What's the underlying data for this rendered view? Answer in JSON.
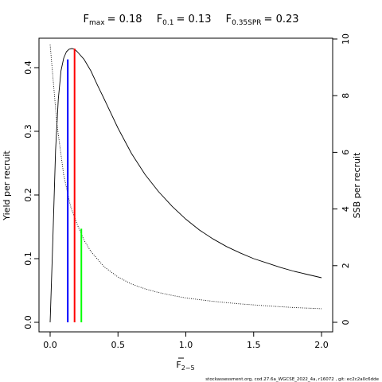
{
  "chart_data": {
    "type": "line",
    "title_terms": [
      {
        "main": "F",
        "sub": "max",
        "value": "= 0.18"
      },
      {
        "main": "F",
        "sub": "0.1",
        "value": "= 0.13"
      },
      {
        "main": "F",
        "sub": "0.35SPR",
        "value": "= 0.23"
      }
    ],
    "xlabel_main": "F",
    "xlabel_sub": "2−5",
    "ylabel_left": "Yield per recruit",
    "ylabel_right": "SSB per recruit",
    "xlim": [
      0,
      2
    ],
    "ylim_left": [
      0,
      0.43
    ],
    "ylim_right": [
      0,
      10
    ],
    "x_ticks": [
      "0.0",
      "0.5",
      "1.0",
      "1.5",
      "2.0"
    ],
    "y_left_ticks": [
      "0.0",
      "0.1",
      "0.2",
      "0.3",
      "0.4"
    ],
    "y_right_ticks": [
      "0",
      "2",
      "4",
      "6",
      "8",
      "10"
    ],
    "series": [
      {
        "axis": "left",
        "style": "solid",
        "color": "#000000",
        "x": [
          0,
          0.02,
          0.04,
          0.06,
          0.08,
          0.1,
          0.12,
          0.14,
          0.16,
          0.18,
          0.2,
          0.25,
          0.3,
          0.35,
          0.4,
          0.5,
          0.6,
          0.7,
          0.8,
          0.9,
          1.0,
          1.1,
          1.2,
          1.3,
          1.4,
          1.5,
          1.6,
          1.7,
          1.8,
          1.9,
          2.0
        ],
        "y": [
          0,
          0.13,
          0.27,
          0.35,
          0.395,
          0.415,
          0.425,
          0.429,
          0.43,
          0.429,
          0.425,
          0.413,
          0.395,
          0.372,
          0.35,
          0.305,
          0.265,
          0.232,
          0.205,
          0.182,
          0.162,
          0.145,
          0.131,
          0.119,
          0.109,
          0.1,
          0.093,
          0.086,
          0.08,
          0.075,
          0.07
        ]
      },
      {
        "axis": "right",
        "style": "dotted",
        "color": "#000000",
        "x": [
          0,
          0.05,
          0.1,
          0.15,
          0.2,
          0.25,
          0.3,
          0.4,
          0.5,
          0.6,
          0.7,
          0.8,
          0.9,
          1.0,
          1.2,
          1.4,
          1.6,
          1.8,
          2.0
        ],
        "y": [
          9.8,
          7.0,
          5.2,
          4.1,
          3.45,
          2.9,
          2.5,
          1.95,
          1.6,
          1.35,
          1.18,
          1.05,
          0.95,
          0.86,
          0.74,
          0.65,
          0.58,
          0.52,
          0.48
        ]
      }
    ],
    "reference_lines": [
      {
        "x": 0.13,
        "y": 0.413,
        "color": "#0000ff"
      },
      {
        "x": 0.18,
        "y": 0.43,
        "color": "#ff0000"
      },
      {
        "x": 0.23,
        "y": 0.147,
        "color": "#00ff00"
      }
    ],
    "grid": false,
    "legend": "none"
  },
  "footer": "stockassessment.org, cod.27.6a_WGCSE_2022_4a, r16072 , git: ec2c2a0c6dde"
}
